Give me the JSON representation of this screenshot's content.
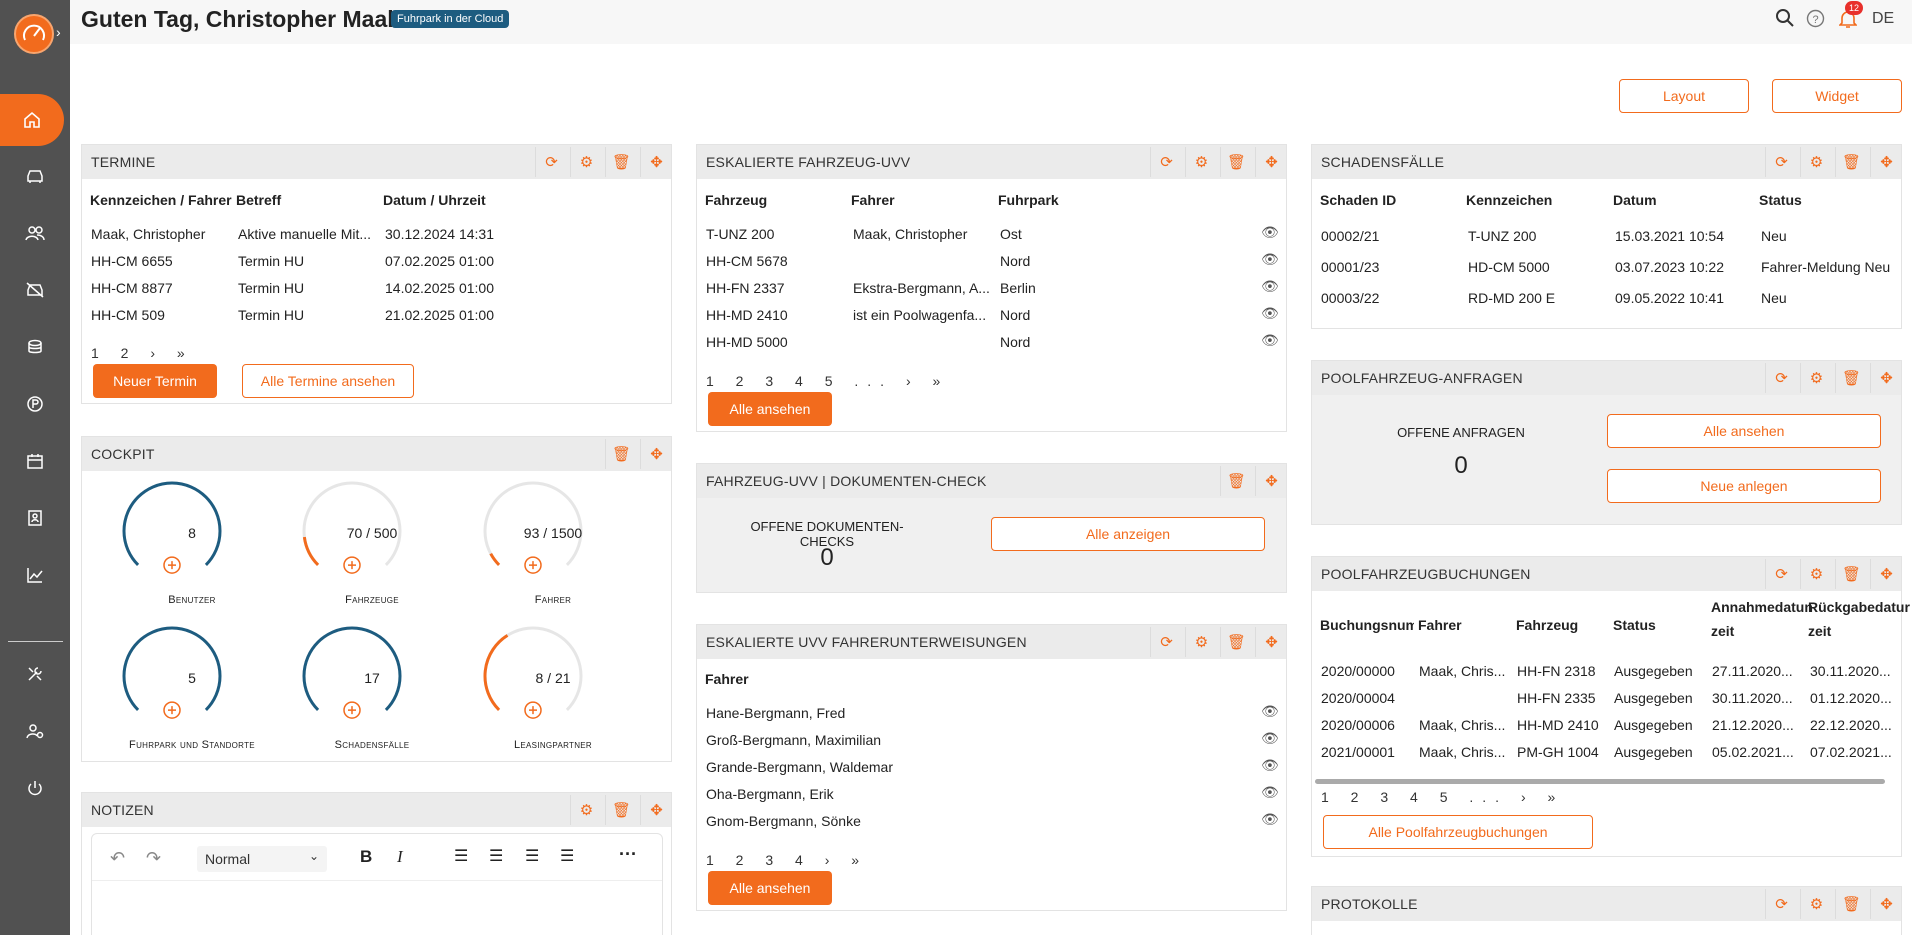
{
  "header": {
    "greeting": "Guten Tag, Christopher Maak!",
    "badge": "Fuhrpark in der Cloud",
    "notif_count": "12",
    "lang": "DE"
  },
  "actions": {
    "layout": "Layout",
    "widget": "Widget"
  },
  "termine": {
    "title": "TERMINE",
    "headers": [
      "Kennzeichen / Fahrer",
      "Betreff",
      "Datum / Uhrzeit"
    ],
    "rows": [
      [
        "Maak, Christopher",
        "Aktive manuelle Mit...",
        "30.12.2024 14:31"
      ],
      [
        "HH-CM 6655",
        "Termin HU",
        "07.02.2025 01:00"
      ],
      [
        "HH-CM 8877",
        "Termin HU",
        "14.02.2025 01:00"
      ],
      [
        "HH-CM 509",
        "Termin HU",
        "21.02.2025 01:00"
      ]
    ],
    "pagination": "1 2 › »",
    "new_btn": "Neuer Termin",
    "all_btn": "Alle Termine ansehen"
  },
  "cockpit": {
    "title": "COCKPIT",
    "gauges": [
      {
        "value": "8",
        "label": "Benutzer",
        "fraction": 1
      },
      {
        "value": "70 / 500",
        "label": "Fahrzeuge",
        "fraction": 0.14
      },
      {
        "value": "93 / 1500",
        "label": "Fahrer",
        "fraction": 0.062
      },
      {
        "value": "5",
        "label": "Fuhrpark und Standorte",
        "fraction": 1
      },
      {
        "value": "17",
        "label": "Schadensfälle",
        "fraction": 1
      },
      {
        "value": "8 / 21",
        "label": "Leasingpartner",
        "fraction": 0.381
      }
    ]
  },
  "notizen": {
    "title": "NOTIZEN",
    "format": "Normal"
  },
  "uvv": {
    "title": "ESKALIERTE FAHRZEUG-UVV",
    "headers": [
      "Fahrzeug",
      "Fahrer",
      "Fuhrpark"
    ],
    "rows": [
      [
        "T-UNZ 200",
        "Maak, Christopher",
        "Ost"
      ],
      [
        "HH-CM 5678",
        "",
        "Nord"
      ],
      [
        "HH-FN 2337",
        "Ekstra-Bergmann, A...",
        "Berlin"
      ],
      [
        "HH-MD 2410",
        "ist ein Poolwagenfa...",
        "Nord"
      ],
      [
        "HH-MD 5000",
        "",
        "Nord"
      ]
    ],
    "pagination": "1 2 3 4 5 ... › »",
    "all_btn": "Alle ansehen"
  },
  "doccheck": {
    "title": "FAHRZEUG-UVV | DOKUMENTEN-CHECK",
    "label": "OFFENE DOKUMENTEN-CHECKS",
    "count": "0",
    "btn": "Alle anzeigen"
  },
  "unterweisung": {
    "title": "ESKALIERTE UVV FAHRERUNTERWEISUNGEN",
    "header": "Fahrer",
    "rows": [
      "Hane-Bergmann, Fred",
      "Groß-Bergmann, Maximilian",
      "Grande-Bergmann, Waldemar",
      "Oha-Bergmann, Erik",
      "Gnom-Bergmann, Sönke"
    ],
    "pagination": "1 2 3 4 › »",
    "all_btn": "Alle ansehen"
  },
  "schaden": {
    "title": "SCHADENSFÄLLE",
    "headers": [
      "Schaden ID",
      "Kennzeichen",
      "Datum",
      "Status"
    ],
    "rows": [
      [
        "00002/21",
        "T-UNZ 200",
        "15.03.2021 10:54",
        "Neu"
      ],
      [
        "00001/23",
        "HD-CM 5000",
        "03.07.2023 10:22",
        "Fahrer-Meldung Neu"
      ],
      [
        "00003/22",
        "RD-MD 200 E",
        "09.05.2022 10:41",
        "Neu"
      ]
    ]
  },
  "pool": {
    "title": "POOLFAHRZEUG-ANFRAGEN",
    "label": "OFFENE ANFRAGEN",
    "count": "0",
    "btn_all": "Alle ansehen",
    "btn_new": "Neue anlegen"
  },
  "buchung": {
    "title": "POOLFAHRZEUGBUCHUNGEN",
    "headers": [
      "Buchungsnumr",
      "Fahrer",
      "Fahrzeug",
      "Status",
      "Annahmedatun zeit",
      "Rückgabedatur zeit"
    ],
    "rows": [
      [
        "2020/00000",
        "Maak, Chris...",
        "HH-FN 2318",
        "Ausgegeben",
        "27.11.2020...",
        "30.11.2020..."
      ],
      [
        "2020/00004",
        "",
        "HH-FN 2335",
        "Ausgegeben",
        "30.11.2020...",
        "01.12.2020..."
      ],
      [
        "2020/00006",
        "Maak, Chris...",
        "HH-MD 2410",
        "Ausgegeben",
        "21.12.2020...",
        "22.12.2020..."
      ],
      [
        "2021/00001",
        "Maak, Chris...",
        "PM-GH 1004",
        "Ausgegeben",
        "05.02.2021...",
        "07.02.2021..."
      ]
    ],
    "pagination": "1 2 3 4 5 ... › »",
    "all_btn": "Alle Poolfahrzeugbuchungen"
  },
  "protokolle": {
    "title": "PROTOKOLLE"
  },
  "colors": {
    "accent": "#f26b1d",
    "gauge_blue": "#1d5c80",
    "sidebar": "#515151"
  }
}
